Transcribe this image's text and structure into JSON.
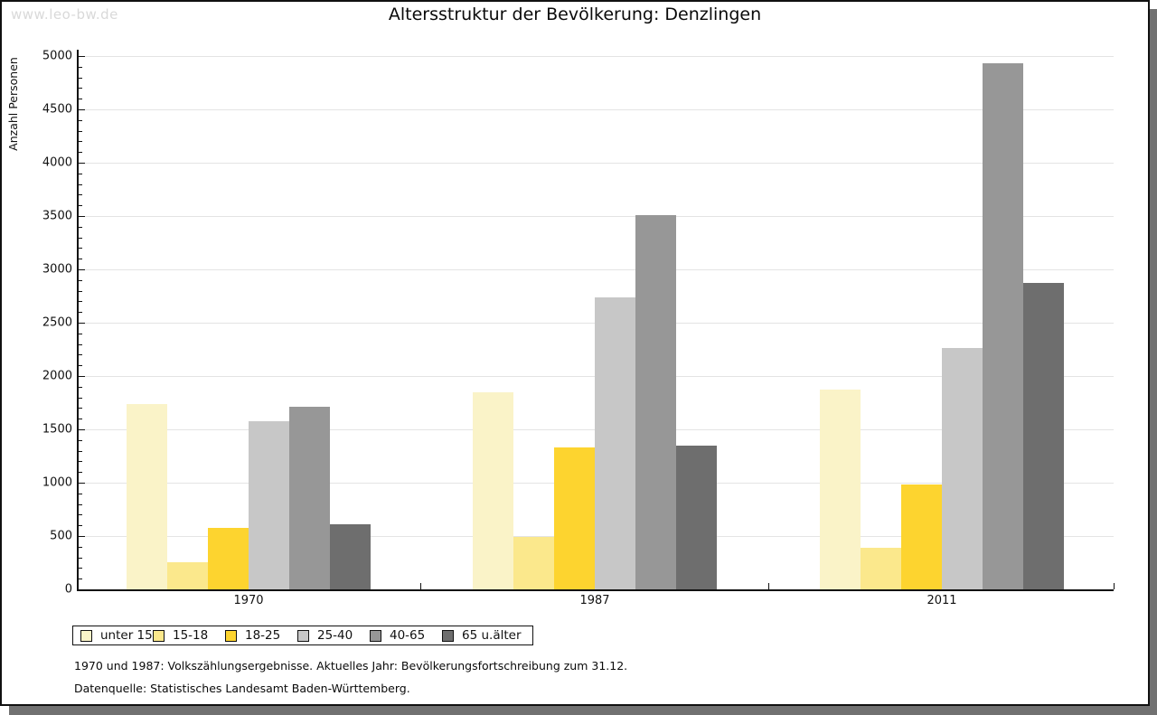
{
  "watermark": "www.leo-bw.de",
  "title": "Altersstruktur der Bevölkerung: Denzlingen",
  "chart_data": {
    "type": "bar",
    "title": "Altersstruktur der Bevölkerung: Denzlingen",
    "ylabel": "Anzahl Personen",
    "xlabel": "",
    "ylim": [
      0,
      5000
    ],
    "ytick_step": 500,
    "yminor_step": 100,
    "grid": true,
    "legend_position": "bottom-left",
    "categories": [
      "1970",
      "1987",
      "2011"
    ],
    "series": [
      {
        "name": "unter 15",
        "color": "#FAF3C8",
        "values": [
          1740,
          1850,
          1875
        ]
      },
      {
        "name": "15-18",
        "color": "#FBE88C",
        "values": [
          255,
          495,
          390
        ]
      },
      {
        "name": "18-25",
        "color": "#FDD42F",
        "values": [
          580,
          1330,
          980
        ]
      },
      {
        "name": "25-40",
        "color": "#C7C7C7",
        "values": [
          1575,
          2735,
          2260
        ]
      },
      {
        "name": "40-65",
        "color": "#979797",
        "values": [
          1710,
          3505,
          4935
        ]
      },
      {
        "name": "65 u.älter",
        "color": "#6E6E6E",
        "values": [
          610,
          1350,
          2870
        ]
      }
    ]
  },
  "footnotes": [
    "1970 und 1987: Volkszählungsergebnisse. Aktuelles Jahr: Bevölkerungsfortschreibung zum 31.12.",
    "Datenquelle: Statistisches Landesamt Baden-Württemberg."
  ]
}
